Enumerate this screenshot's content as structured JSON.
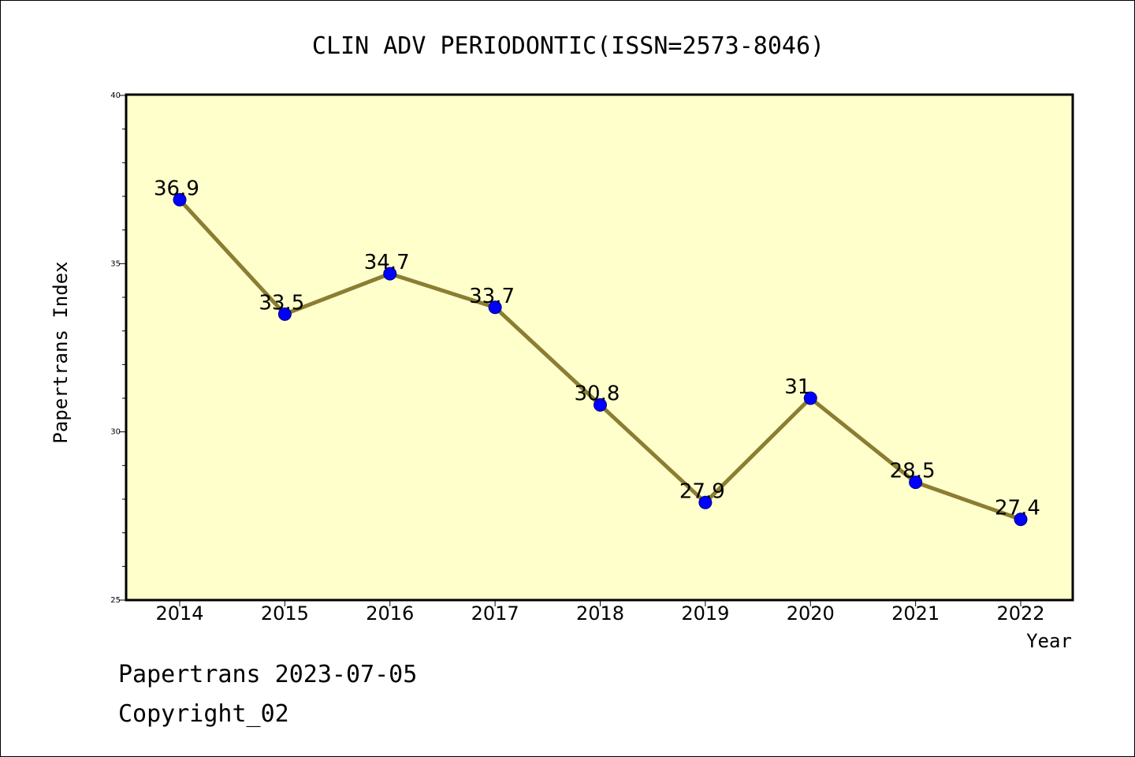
{
  "footer": {
    "line1": "Papertrans 2023-07-05",
    "line2": "Copyright_02"
  },
  "colors": {
    "plot_background": "#ffffcc",
    "line": "#8b7d32",
    "marker": "#0000ff",
    "marker_edge": "#000080"
  },
  "chart_data": {
    "type": "line",
    "title": "CLIN ADV PERIODONTIC(ISSN=2573-8046)",
    "xlabel": "Year",
    "ylabel": "Papertrans Index",
    "categories": [
      "2014",
      "2015",
      "2016",
      "2017",
      "2018",
      "2019",
      "2020",
      "2021",
      "2022"
    ],
    "series": [
      {
        "values": [
          36.9,
          33.5,
          34.7,
          33.7,
          30.8,
          27.9,
          31,
          28.5,
          27.4
        ],
        "labels": [
          "36.9",
          "33.5",
          "34.7",
          "33.7",
          "30.8",
          "27.9",
          "31",
          "28.5",
          "27.4"
        ]
      }
    ],
    "ylim": [
      25,
      40
    ],
    "yticks": [
      "25",
      "30",
      "35",
      "40"
    ],
    "grid": false,
    "legend": "none"
  }
}
